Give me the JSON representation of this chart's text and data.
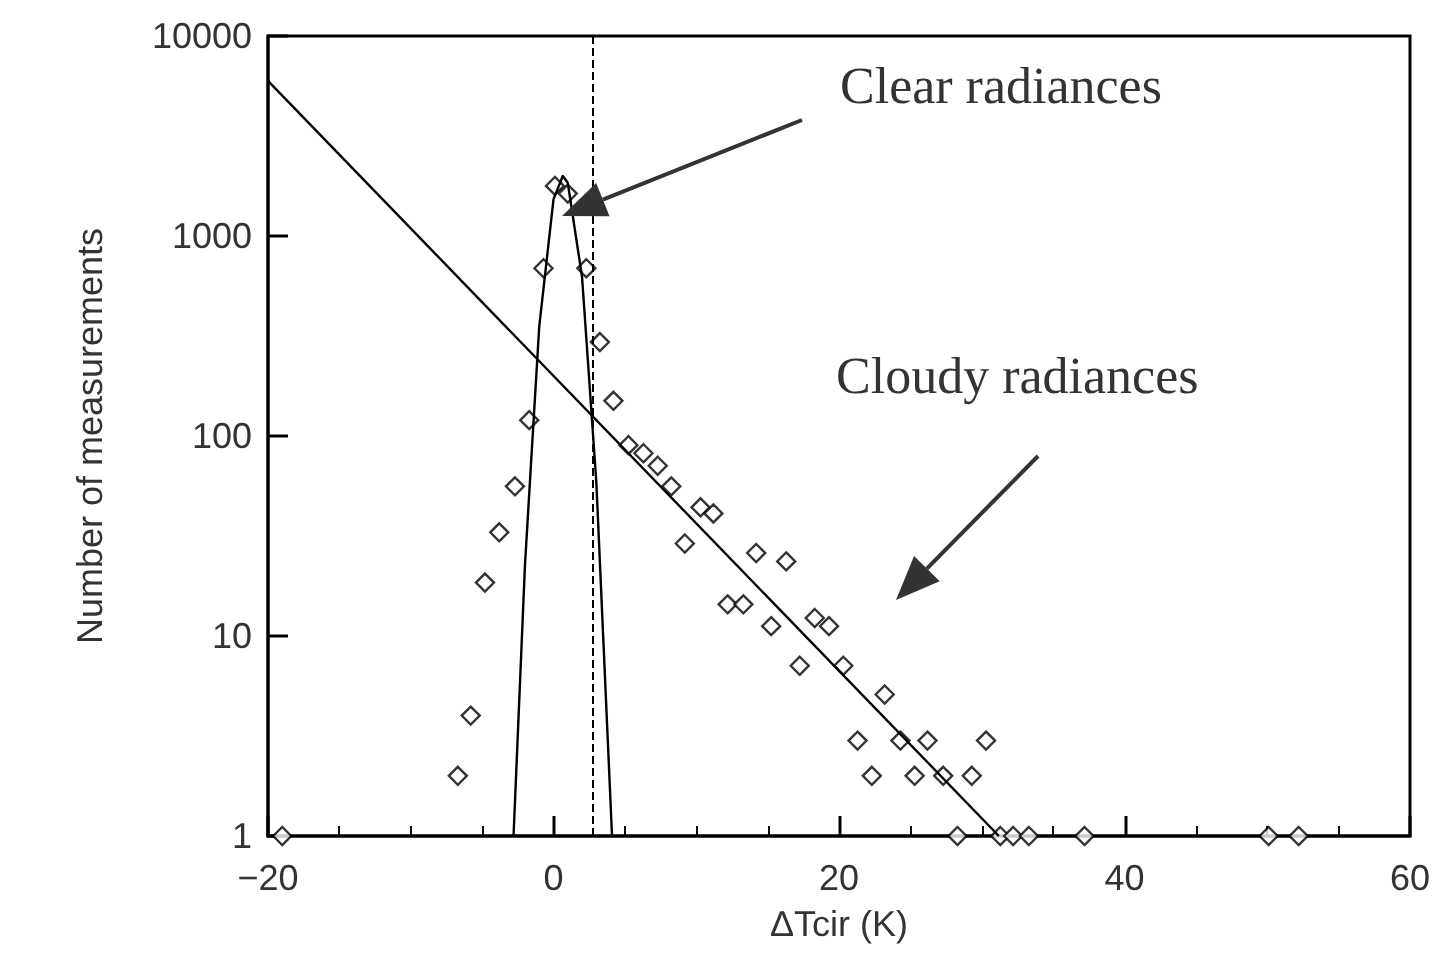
{
  "chart_data": {
    "type": "scatter",
    "xlabel": "ΔTcir (K)",
    "ylabel": "Number of measurements",
    "log": "y",
    "grid": false,
    "xlim": [
      -20,
      60
    ],
    "xticks": [
      -20,
      0,
      20,
      40,
      60
    ],
    "ylim": [
      1,
      10000
    ],
    "yticks": [
      1,
      10,
      100,
      1000,
      10000
    ],
    "annotations": [
      "Clear radiances",
      "Cloudy radiances"
    ],
    "ref_lines": [
      {
        "axis": "x",
        "value": 2.8,
        "line_style": "dashed",
        "color": "#000000"
      }
    ],
    "series": [
      {
        "marker": "diamond",
        "color": "#000000",
        "x": [
          -19,
          -6.7,
          -5.8,
          -4.8,
          -3.8,
          -2.7,
          -1.7,
          -0.7,
          0.1,
          1.0,
          2.3,
          3.25,
          4.2,
          5.25,
          6.3,
          7.3,
          8.25,
          9.2,
          10.3,
          11.2,
          12.2,
          13.3,
          14.2,
          15.25,
          16.3,
          17.25,
          18.3,
          19.3,
          20.3,
          21.3,
          22.3,
          23.2,
          24.3,
          25.3,
          26.2,
          27.3,
          28.3,
          29.3,
          30.3,
          31.3,
          32.2,
          33.3,
          37.2,
          50.1,
          52.2
        ],
        "values": [
          1,
          2,
          4,
          18.5,
          33,
          56,
          120,
          690,
          1780,
          1630,
          690,
          295,
          150,
          90,
          82,
          71,
          56,
          29,
          44,
          41,
          14.4,
          14.4,
          26,
          11.2,
          23.6,
          7.1,
          12.3,
          11.2,
          7.1,
          3,
          2,
          5.1,
          3,
          2,
          3,
          2,
          1,
          2,
          3,
          1,
          1,
          1,
          1,
          1,
          1
        ]
      },
      {
        "type": "line",
        "marker": "none",
        "line_style": "solid",
        "color": "#000000",
        "x": [
          -2.8,
          -2,
          -1,
          0,
          0.65,
          1,
          2,
          3,
          4.1
        ],
        "values": [
          1,
          22.6,
          352,
          1524,
          1995,
          1845,
          624,
          59,
          1
        ]
      },
      {
        "type": "line",
        "marker": "none",
        "line_style": "solid",
        "color": "#000000",
        "x": [
          -20,
          31.2
        ],
        "values": [
          5960,
          1
        ]
      }
    ]
  }
}
